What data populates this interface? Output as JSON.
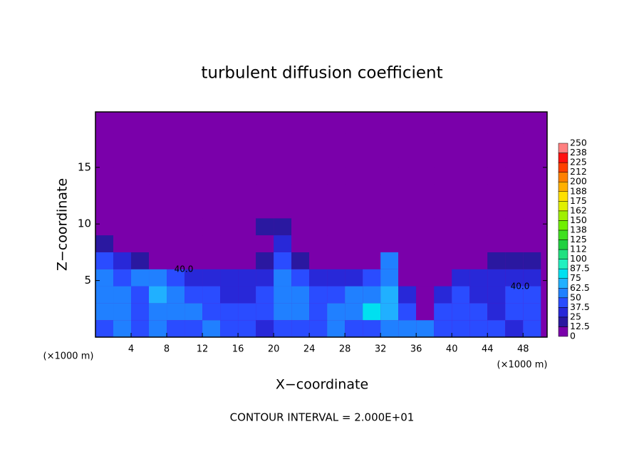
{
  "chart_data": {
    "type": "heatmap",
    "title": "turbulent diffusion coefficient",
    "x_label": "X−coordinate",
    "y_label": "Z−coordinate",
    "x_unit_label": "(×1000 m)",
    "x_unit_label_right": "(×1000 m)",
    "footer": "CONTOUR INTERVAL = 2.000E+01",
    "contour_labels": [
      "40.0",
      "40.0"
    ],
    "xlim": [
      0,
      50.7
    ],
    "ylim": [
      0,
      19.9
    ],
    "xticks": [
      4,
      8,
      12,
      16,
      20,
      24,
      28,
      32,
      36,
      40,
      44,
      48
    ],
    "yticks": [
      5,
      10,
      15
    ],
    "x": [
      1,
      3,
      5,
      7,
      9,
      11,
      13,
      15,
      17,
      19,
      21,
      23,
      25,
      27,
      29,
      31,
      33,
      35,
      37,
      39,
      41,
      43,
      45,
      47,
      49
    ],
    "y": [
      0.75,
      2.25,
      3.75,
      5.25,
      6.75,
      8.25,
      9.75,
      11.25,
      12.75,
      14.25,
      15.75,
      17.25,
      18.75
    ],
    "z": [
      [
        45,
        50,
        40,
        55,
        45,
        40,
        50,
        45,
        40,
        35,
        40,
        45,
        40,
        55,
        40,
        45,
        50,
        55,
        60,
        45,
        40,
        45,
        40,
        35,
        40
      ],
      [
        55,
        50,
        45,
        60,
        50,
        55,
        45,
        40,
        45,
        40,
        50,
        60,
        45,
        50,
        55,
        75,
        70,
        40,
        10,
        40,
        45,
        40,
        35,
        40,
        45
      ],
      [
        50,
        55,
        40,
        65,
        55,
        45,
        40,
        35,
        35,
        40,
        55,
        50,
        40,
        45,
        60,
        55,
        65,
        30,
        0,
        35,
        40,
        35,
        35,
        40,
        40
      ],
      [
        60,
        45,
        55,
        50,
        45,
        35,
        30,
        30,
        25,
        30,
        50,
        45,
        30,
        30,
        25,
        40,
        60,
        0,
        0,
        10,
        30,
        30,
        35,
        30,
        30
      ],
      [
        40,
        35,
        20,
        10,
        5,
        0,
        0,
        0,
        10,
        15,
        45,
        20,
        10,
        5,
        5,
        10,
        55,
        0,
        0,
        0,
        0,
        10,
        20,
        20,
        20
      ],
      [
        15,
        0,
        0,
        0,
        0,
        0,
        0,
        0,
        0,
        10,
        35,
        0,
        0,
        0,
        0,
        0,
        0,
        0,
        0,
        0,
        0,
        0,
        0,
        0,
        0
      ],
      [
        0,
        0,
        0,
        0,
        0,
        0,
        0,
        0,
        0,
        20,
        15,
        0,
        0,
        0,
        0,
        0,
        0,
        0,
        0,
        0,
        0,
        0,
        0,
        0,
        0
      ],
      [
        0,
        0,
        0,
        0,
        0,
        0,
        0,
        0,
        0,
        0,
        0,
        0,
        0,
        0,
        0,
        0,
        0,
        0,
        0,
        0,
        0,
        0,
        0,
        0,
        0
      ],
      [
        0,
        0,
        0,
        0,
        0,
        0,
        0,
        0,
        0,
        0,
        0,
        0,
        0,
        0,
        0,
        0,
        0,
        0,
        0,
        0,
        0,
        0,
        0,
        0,
        0
      ],
      [
        0,
        0,
        0,
        0,
        0,
        0,
        0,
        0,
        0,
        0,
        0,
        0,
        0,
        0,
        0,
        0,
        0,
        0,
        0,
        0,
        0,
        0,
        0,
        0,
        0
      ],
      [
        0,
        0,
        0,
        0,
        0,
        0,
        0,
        0,
        0,
        0,
        0,
        0,
        0,
        0,
        0,
        0,
        0,
        0,
        0,
        0,
        0,
        0,
        0,
        0,
        0
      ],
      [
        0,
        0,
        0,
        0,
        0,
        0,
        0,
        0,
        0,
        0,
        0,
        0,
        0,
        0,
        0,
        0,
        0,
        0,
        0,
        0,
        0,
        0,
        0,
        0,
        0
      ],
      [
        0,
        0,
        0,
        0,
        0,
        0,
        0,
        0,
        0,
        0,
        0,
        0,
        0,
        0,
        0,
        0,
        0,
        0,
        0,
        0,
        0,
        0,
        0,
        0,
        0
      ]
    ],
    "levels": [
      0,
      12.5,
      25,
      37.5,
      50,
      62.5,
      75,
      87.5,
      100,
      112,
      125,
      138,
      150,
      162,
      175,
      188,
      200,
      212,
      225,
      238,
      250
    ],
    "colors": [
      "#7a00aa",
      "#2a18a0",
      "#2828d8",
      "#2a4cff",
      "#2080ff",
      "#20b0ff",
      "#00e0f0",
      "#20f0c0",
      "#20e080",
      "#20d040",
      "#40e020",
      "#70f000",
      "#a0f000",
      "#e0f000",
      "#ffe000",
      "#ffb000",
      "#ff8000",
      "#ff4000",
      "#ff1010",
      "#ff8080"
    ]
  }
}
